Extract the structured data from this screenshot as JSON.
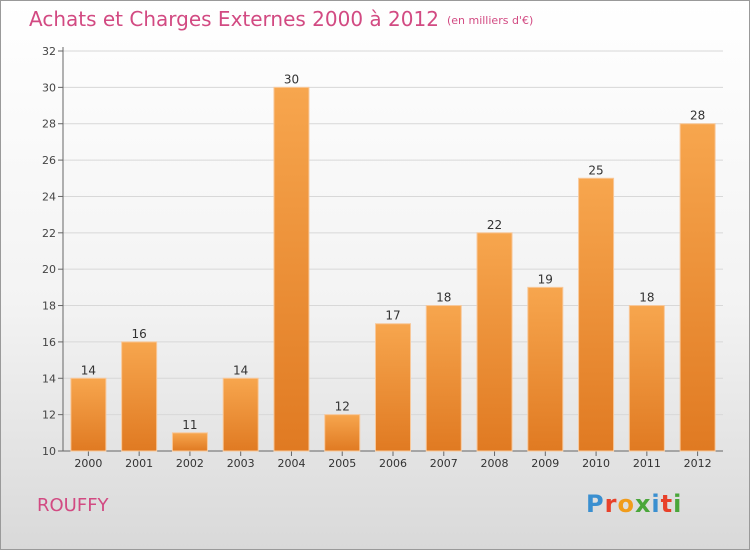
{
  "header": {
    "title": "Achats et Charges Externes 2000 à 2012",
    "subtitle": "(en milliers d'€)"
  },
  "commune": "ROUFFY",
  "logo": {
    "text": "Proxiti",
    "letter_colors": [
      "#3a8fd0",
      "#e8412a",
      "#f19c1b",
      "#4aa63a",
      "#3a8fd0",
      "#e8412a",
      "#4aa63a"
    ]
  },
  "colors": {
    "bar_top": "#f7a64e",
    "bar_bottom": "#e07a22",
    "accent": "#d24a82"
  },
  "chart_data": {
    "type": "bar",
    "categories": [
      "2000",
      "2001",
      "2002",
      "2003",
      "2004",
      "2005",
      "2006",
      "2007",
      "2008",
      "2009",
      "2010",
      "2011",
      "2012"
    ],
    "values": [
      14,
      16,
      11,
      14,
      30,
      12,
      17,
      18,
      22,
      19,
      25,
      18,
      28
    ],
    "ylim": [
      10,
      32
    ],
    "yticks": [
      10,
      12,
      14,
      16,
      18,
      20,
      22,
      24,
      26,
      28,
      30,
      32
    ],
    "grid": true
  }
}
